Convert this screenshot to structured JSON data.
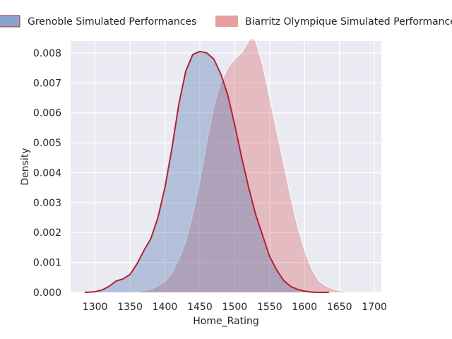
{
  "chart_data": {
    "type": "area",
    "title": "",
    "xlabel": "Home_Rating",
    "ylabel": "Density",
    "xlim": [
      1265,
      1710
    ],
    "ylim": [
      0,
      0.0084
    ],
    "xticks": [
      1300,
      1350,
      1400,
      1450,
      1500,
      1550,
      1600,
      1650,
      1700
    ],
    "yticks": [
      0.0,
      0.001,
      0.002,
      0.003,
      0.004,
      0.005,
      0.006,
      0.007,
      0.008
    ],
    "xtick_labels": [
      "1300",
      "1350",
      "1400",
      "1450",
      "1500",
      "1550",
      "1600",
      "1650",
      "1700"
    ],
    "ytick_labels": [
      "0.000",
      "0.001",
      "0.002",
      "0.003",
      "0.004",
      "0.005",
      "0.006",
      "0.007",
      "0.008"
    ],
    "grid": true,
    "legend_position": "top",
    "colors": {
      "background": "#eaeaf2",
      "grid": "#ffffff"
    },
    "series": [
      {
        "name": "Grenoble Simulated Performances",
        "fill": "#4c72b0",
        "fill_opacity": 0.35,
        "stroke": "#b22234",
        "stroke_width": 2,
        "x": [
          1285,
          1300,
          1310,
          1320,
          1330,
          1340,
          1350,
          1360,
          1370,
          1380,
          1390,
          1400,
          1410,
          1420,
          1430,
          1440,
          1450,
          1460,
          1470,
          1480,
          1490,
          1500,
          1510,
          1520,
          1530,
          1540,
          1550,
          1560,
          1570,
          1580,
          1590,
          1600,
          1610,
          1620,
          1635
        ],
        "y": [
          0.0,
          2e-05,
          8e-05,
          0.0002,
          0.00038,
          0.00045,
          0.0006,
          0.00095,
          0.0014,
          0.0018,
          0.0025,
          0.0035,
          0.0048,
          0.0063,
          0.0074,
          0.00795,
          0.00805,
          0.008,
          0.0078,
          0.0073,
          0.0066,
          0.0056,
          0.0045,
          0.0035,
          0.0026,
          0.0019,
          0.0012,
          0.00075,
          0.0004,
          0.0002,
          0.0001,
          4e-05,
          1e-05,
          0.0,
          0.0
        ]
      },
      {
        "name": "Biarritz Olympique Simulated Performances",
        "fill": "#d64f4f",
        "fill_opacity": 0.3,
        "stroke": "#ffffff",
        "stroke_width": 1,
        "x": [
          1345,
          1360,
          1380,
          1400,
          1410,
          1420,
          1430,
          1440,
          1450,
          1460,
          1470,
          1480,
          1490,
          1500,
          1510,
          1520,
          1525,
          1530,
          1540,
          1550,
          1560,
          1570,
          1580,
          1590,
          1600,
          1610,
          1620,
          1630,
          1640,
          1650,
          1660,
          1670,
          1680,
          1690
        ],
        "y": [
          0.0,
          2e-05,
          0.0001,
          0.00035,
          0.00065,
          0.0011,
          0.0017,
          0.0026,
          0.0037,
          0.005,
          0.0062,
          0.007,
          0.0075,
          0.0078,
          0.008,
          0.0084,
          0.0085,
          0.0084,
          0.0076,
          0.0065,
          0.0054,
          0.0043,
          0.0032,
          0.0022,
          0.0014,
          0.0008,
          0.0004,
          0.00022,
          0.00012,
          6e-05,
          3e-05,
          1e-05,
          0.0,
          0.0
        ]
      }
    ]
  }
}
